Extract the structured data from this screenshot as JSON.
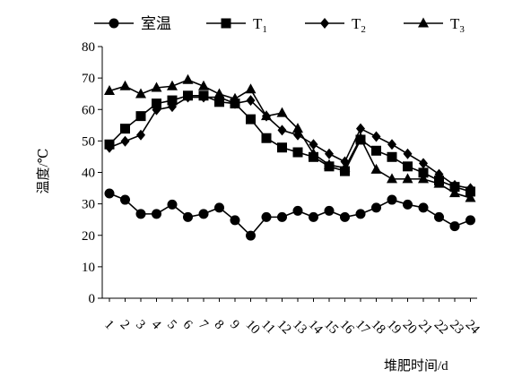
{
  "chart_data": {
    "type": "line",
    "title": "",
    "xlabel": "堆肥时间/d",
    "ylabel": "温度/℃",
    "ylim": [
      0,
      80
    ],
    "yticks": [
      0,
      10,
      20,
      30,
      40,
      50,
      60,
      70,
      80
    ],
    "x": [
      "1",
      "2",
      "3",
      "4",
      "5",
      "6",
      "7",
      "8",
      "9",
      "10",
      "11",
      "12",
      "13",
      "14",
      "15",
      "16",
      "17",
      "18",
      "19",
      "20",
      "21",
      "22",
      "23",
      "24"
    ],
    "grid": false,
    "legend_position": "top",
    "series": [
      {
        "name": "室温",
        "marker": "circle",
        "color": "#000000",
        "x": [
          1,
          2,
          3,
          4,
          5,
          6,
          7,
          8,
          9,
          10,
          11,
          12,
          13,
          14,
          15,
          16,
          17,
          18,
          19,
          20,
          21,
          22,
          23,
          24
        ],
        "values": [
          33.3,
          31.3,
          26.8,
          26.8,
          29.8,
          25.8,
          26.8,
          28.8,
          24.8,
          19.9,
          25.8,
          25.8,
          27.8,
          25.8,
          27.8,
          25.8,
          26.8,
          28.8,
          31.3,
          29.8,
          28.8,
          25.8,
          22.9,
          24.8
        ]
      },
      {
        "name": "T1",
        "marker": "square",
        "color": "#000000",
        "x": [
          1,
          2,
          3,
          4,
          5,
          6,
          7,
          8,
          9,
          10,
          11,
          12,
          13,
          14,
          15,
          16,
          17,
          18,
          19,
          20,
          21,
          22,
          23,
          24
        ],
        "values": [
          48.9,
          53.9,
          57.9,
          61.9,
          62.9,
          64.4,
          64.4,
          62.4,
          61.9,
          56.9,
          50.9,
          47.9,
          46.4,
          44.9,
          41.9,
          40.4,
          50.4,
          46.9,
          44.9,
          41.9,
          39.9,
          37.4,
          35.4,
          33.9
        ]
      },
      {
        "name": "T2",
        "marker": "diamond",
        "color": "#000000",
        "x": [
          1,
          2,
          3,
          4,
          5,
          6,
          7,
          8,
          9,
          10,
          11,
          12,
          13,
          14,
          15,
          16,
          17,
          18,
          19,
          20,
          21,
          22,
          23,
          24
        ],
        "values": [
          47.9,
          49.9,
          51.9,
          59.9,
          60.9,
          63.9,
          63.9,
          63.9,
          61.9,
          62.9,
          57.9,
          53.4,
          51.9,
          48.9,
          45.9,
          43.4,
          53.9,
          51.4,
          48.9,
          45.9,
          42.9,
          39.4,
          35.9,
          34.9
        ]
      },
      {
        "name": "T3",
        "marker": "triangle",
        "color": "#000000",
        "x": [
          1,
          2,
          3,
          4,
          5,
          6,
          7,
          8,
          9,
          10,
          11,
          12,
          13,
          14,
          15,
          16,
          17,
          18,
          19,
          20,
          21,
          22,
          23,
          24
        ],
        "values": [
          65.9,
          67.4,
          64.9,
          66.9,
          67.4,
          69.4,
          67.4,
          64.9,
          63.4,
          66.4,
          57.9,
          58.9,
          53.9,
          45.9,
          42.4,
          41.4,
          50.9,
          40.9,
          37.9,
          37.9,
          37.9,
          36.4,
          33.4,
          31.9
        ]
      }
    ],
    "legend_labels": [
      {
        "main": "室温",
        "sub": ""
      },
      {
        "main": "T",
        "sub": "1"
      },
      {
        "main": "T",
        "sub": "2"
      },
      {
        "main": "T",
        "sub": "3"
      }
    ]
  }
}
